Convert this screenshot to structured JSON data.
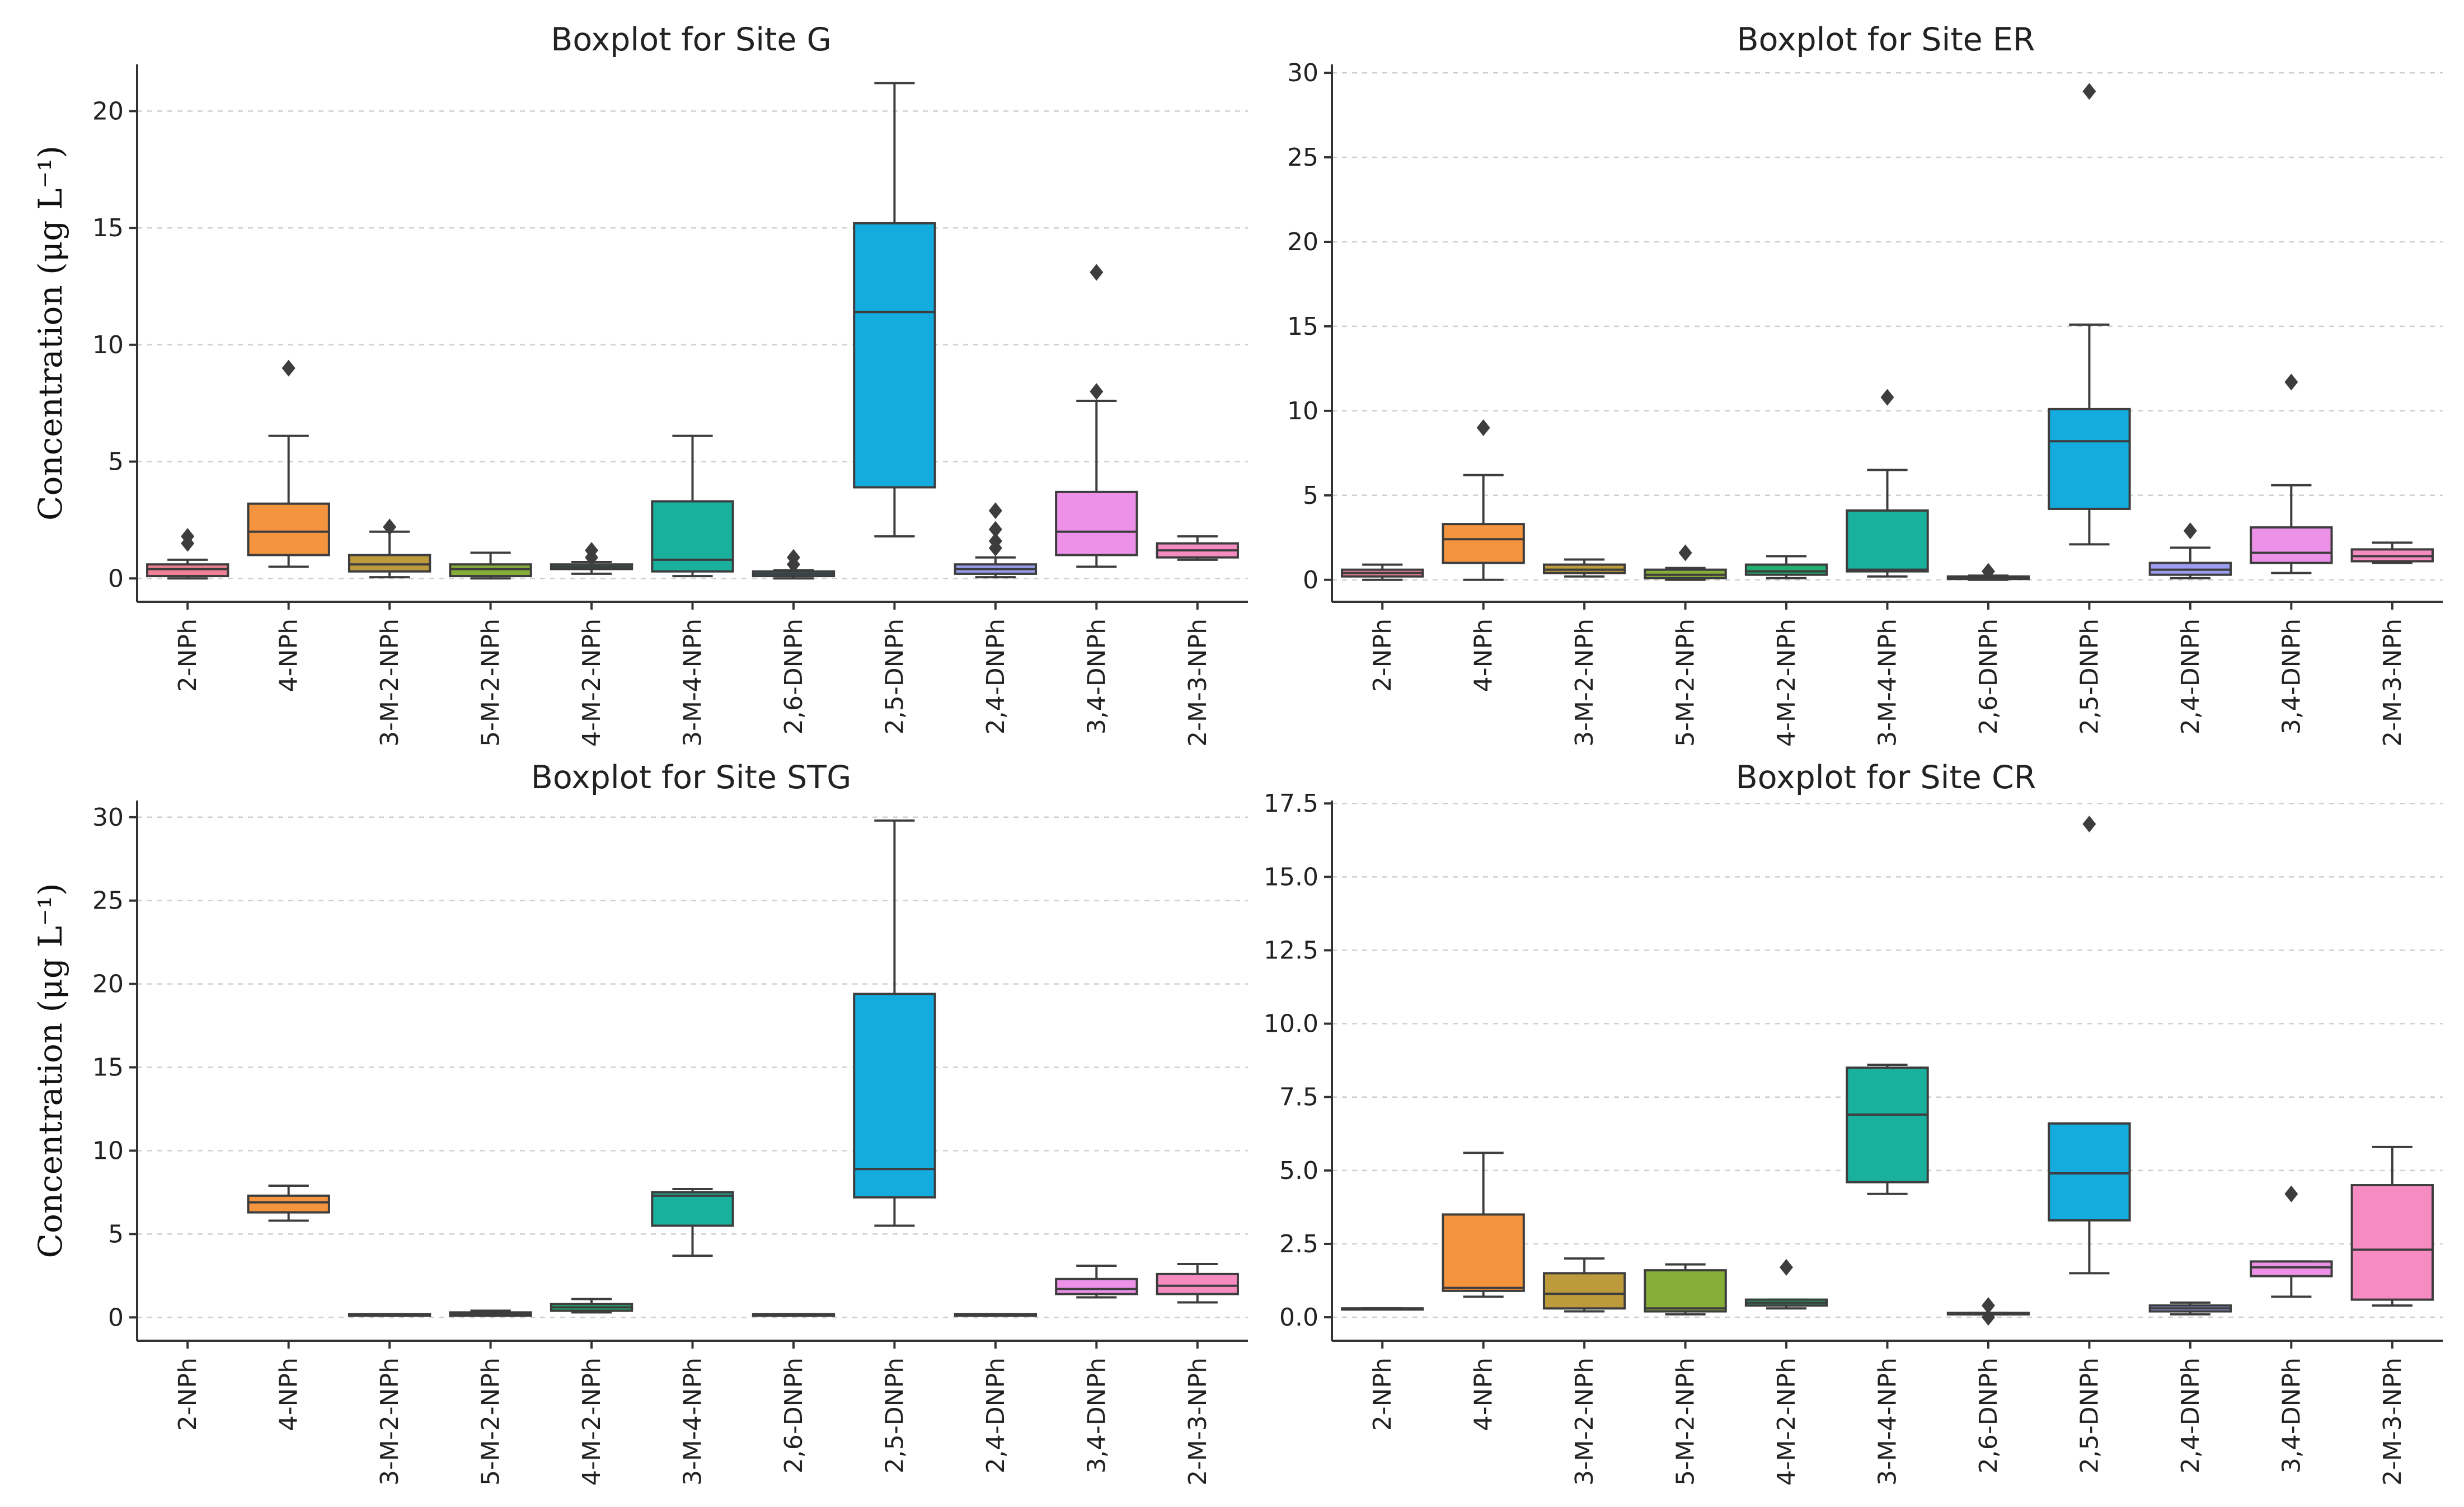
{
  "chart_data": [
    {
      "type": "boxplot",
      "title": "Boxplot for Site G",
      "ylabel": "Concentration (μg L⁻¹)",
      "ylim": [
        -1,
        22
      ],
      "yticks": [
        0,
        5,
        10,
        15,
        20
      ],
      "ytick_labels": [
        "0",
        "5",
        "10",
        "15",
        "20"
      ],
      "categories": [
        "2-NPh",
        "4-NPh",
        "3-M-2-NPh",
        "5-M-2-NPh",
        "4-M-2-NPh",
        "3-M-4-NPh",
        "2,6-DNPh",
        "2,5-DNPh",
        "2,4-DNPh",
        "3,4-DNPh",
        "2-M-3-NPh"
      ],
      "boxes": [
        {
          "whislo": 0.0,
          "q1": 0.1,
          "med": 0.4,
          "q3": 0.6,
          "whishi": 0.8,
          "fliers": [
            1.5,
            1.8
          ]
        },
        {
          "whislo": 0.5,
          "q1": 1.0,
          "med": 2.0,
          "q3": 3.2,
          "whishi": 6.1,
          "fliers": [
            9.0
          ]
        },
        {
          "whislo": 0.05,
          "q1": 0.3,
          "med": 0.6,
          "q3": 1.0,
          "whishi": 2.0,
          "fliers": [
            2.2
          ]
        },
        {
          "whislo": 0.0,
          "q1": 0.1,
          "med": 0.4,
          "q3": 0.6,
          "whishi": 1.1,
          "fliers": []
        },
        {
          "whislo": 0.2,
          "q1": 0.4,
          "med": 0.5,
          "q3": 0.6,
          "whishi": 0.7,
          "fliers": [
            0.9,
            1.2
          ]
        },
        {
          "whislo": 0.1,
          "q1": 0.3,
          "med": 0.8,
          "q3": 3.3,
          "whishi": 6.1,
          "fliers": []
        },
        {
          "whislo": 0.0,
          "q1": 0.1,
          "med": 0.2,
          "q3": 0.3,
          "whishi": 0.35,
          "fliers": [
            0.6,
            0.9
          ]
        },
        {
          "whislo": 1.8,
          "q1": 3.9,
          "med": 11.4,
          "q3": 15.2,
          "whishi": 21.2,
          "fliers": []
        },
        {
          "whislo": 0.05,
          "q1": 0.2,
          "med": 0.4,
          "q3": 0.6,
          "whishi": 0.9,
          "fliers": [
            1.3,
            1.6,
            2.1,
            2.9
          ]
        },
        {
          "whislo": 0.5,
          "q1": 1.0,
          "med": 2.0,
          "q3": 3.7,
          "whishi": 7.6,
          "fliers": [
            8.0,
            13.1
          ]
        },
        {
          "whislo": 0.8,
          "q1": 0.9,
          "med": 1.2,
          "q3": 1.5,
          "whishi": 1.8,
          "fliers": []
        }
      ]
    },
    {
      "type": "boxplot",
      "title": "Boxplot for Site ER",
      "ylabel": "",
      "ylim": [
        -1.3,
        30.5
      ],
      "yticks": [
        0,
        5,
        10,
        15,
        20,
        25,
        30
      ],
      "ytick_labels": [
        "0",
        "5",
        "10",
        "15",
        "20",
        "25",
        "30"
      ],
      "categories": [
        "2-NPh",
        "4-NPh",
        "3-M-2-NPh",
        "5-M-2-NPh",
        "4-M-2-NPh",
        "3-M-4-NPh",
        "2,6-DNPh",
        "2,5-DNPh",
        "2,4-DNPh",
        "3,4-DNPh",
        "2-M-3-NPh"
      ],
      "boxes": [
        {
          "whislo": 0.0,
          "q1": 0.2,
          "med": 0.4,
          "q3": 0.6,
          "whishi": 0.9,
          "fliers": []
        },
        {
          "whislo": 0.0,
          "q1": 1.0,
          "med": 2.4,
          "q3": 3.3,
          "whishi": 6.2,
          "fliers": [
            9.0
          ]
        },
        {
          "whislo": 0.2,
          "q1": 0.4,
          "med": 0.6,
          "q3": 0.9,
          "whishi": 1.2,
          "fliers": []
        },
        {
          "whislo": 0.0,
          "q1": 0.1,
          "med": 0.3,
          "q3": 0.6,
          "whishi": 0.7,
          "fliers": [
            1.6
          ]
        },
        {
          "whislo": 0.1,
          "q1": 0.3,
          "med": 0.5,
          "q3": 0.9,
          "whishi": 1.4,
          "fliers": []
        },
        {
          "whislo": 0.2,
          "q1": 0.5,
          "med": 0.6,
          "q3": 4.1,
          "whishi": 6.5,
          "fliers": [
            10.8
          ]
        },
        {
          "whislo": 0.0,
          "q1": 0.05,
          "med": 0.1,
          "q3": 0.2,
          "whishi": 0.25,
          "fliers": [
            0.5
          ]
        },
        {
          "whislo": 2.1,
          "q1": 4.2,
          "med": 8.2,
          "q3": 10.1,
          "whishi": 15.1,
          "fliers": [
            28.9
          ]
        },
        {
          "whislo": 0.1,
          "q1": 0.3,
          "med": 0.6,
          "q3": 1.0,
          "whishi": 1.9,
          "fliers": [
            2.9
          ]
        },
        {
          "whislo": 0.4,
          "q1": 1.0,
          "med": 1.6,
          "q3": 3.1,
          "whishi": 5.6,
          "fliers": [
            11.7
          ]
        },
        {
          "whislo": 1.0,
          "q1": 1.1,
          "med": 1.4,
          "q3": 1.8,
          "whishi": 2.2,
          "fliers": []
        }
      ]
    },
    {
      "type": "boxplot",
      "title": "Boxplot for Site STG",
      "ylabel": "Concentration (μg L⁻¹)",
      "ylim": [
        -1.4,
        31
      ],
      "yticks": [
        0,
        5,
        10,
        15,
        20,
        25,
        30
      ],
      "ytick_labels": [
        "0",
        "5",
        "10",
        "15",
        "20",
        "25",
        "30"
      ],
      "categories": [
        "2-NPh",
        "4-NPh",
        "3-M-2-NPh",
        "5-M-2-NPh",
        "4-M-2-NPh",
        "3-M-4-NPh",
        "2,6-DNPh",
        "2,5-DNPh",
        "2,4-DNPh",
        "3,4-DNPh",
        "2-M-3-NPh"
      ],
      "boxes": [
        null,
        {
          "whislo": 5.8,
          "q1": 6.3,
          "med": 6.9,
          "q3": 7.3,
          "whishi": 7.9,
          "fliers": []
        },
        {
          "whislo": 0.1,
          "q1": 0.1,
          "med": 0.15,
          "q3": 0.2,
          "whishi": 0.2,
          "fliers": []
        },
        {
          "whislo": 0.1,
          "q1": 0.1,
          "med": 0.2,
          "q3": 0.3,
          "whishi": 0.4,
          "fliers": []
        },
        {
          "whislo": 0.3,
          "q1": 0.4,
          "med": 0.6,
          "q3": 0.8,
          "whishi": 1.1,
          "fliers": []
        },
        {
          "whislo": 3.7,
          "q1": 5.5,
          "med": 7.3,
          "q3": 7.5,
          "whishi": 7.7,
          "fliers": []
        },
        {
          "whislo": 0.1,
          "q1": 0.1,
          "med": 0.15,
          "q3": 0.2,
          "whishi": 0.2,
          "fliers": []
        },
        {
          "whislo": 5.5,
          "q1": 7.2,
          "med": 8.9,
          "q3": 19.4,
          "whishi": 29.8,
          "fliers": []
        },
        {
          "whislo": 0.1,
          "q1": 0.1,
          "med": 0.15,
          "q3": 0.2,
          "whishi": 0.2,
          "fliers": []
        },
        {
          "whislo": 1.2,
          "q1": 1.4,
          "med": 1.7,
          "q3": 2.3,
          "whishi": 3.1,
          "fliers": []
        },
        {
          "whislo": 0.9,
          "q1": 1.4,
          "med": 1.9,
          "q3": 2.6,
          "whishi": 3.2,
          "fliers": []
        }
      ]
    },
    {
      "type": "boxplot",
      "title": "Boxplot for Site CR",
      "ylabel": "",
      "ylim": [
        -0.8,
        17.6
      ],
      "yticks": [
        0,
        2.5,
        5,
        7.5,
        10,
        12.5,
        15,
        17.5
      ],
      "ytick_labels": [
        "0.0",
        "2.5",
        "5.0",
        "7.5",
        "10.0",
        "12.5",
        "15.0",
        "17.5"
      ],
      "categories": [
        "2-NPh",
        "4-NPh",
        "3-M-2-NPh",
        "5-M-2-NPh",
        "4-M-2-NPh",
        "3-M-4-NPh",
        "2,6-DNPh",
        "2,5-DNPh",
        "2,4-DNPh",
        "3,4-DNPh",
        "2-M-3-NPh"
      ],
      "boxes": [
        {
          "whislo": 0.3,
          "q1": 0.3,
          "med": 0.3,
          "q3": 0.3,
          "whishi": 0.3,
          "fliers": []
        },
        {
          "whislo": 0.7,
          "q1": 0.9,
          "med": 1.0,
          "q3": 3.5,
          "whishi": 5.6,
          "fliers": []
        },
        {
          "whislo": 0.2,
          "q1": 0.3,
          "med": 0.8,
          "q3": 1.5,
          "whishi": 2.0,
          "fliers": []
        },
        {
          "whislo": 0.1,
          "q1": 0.2,
          "med": 0.3,
          "q3": 1.6,
          "whishi": 1.8,
          "fliers": []
        },
        {
          "whislo": 0.3,
          "q1": 0.4,
          "med": 0.5,
          "q3": 0.6,
          "whishi": 0.6,
          "fliers": [
            1.7
          ]
        },
        {
          "whislo": 4.2,
          "q1": 4.6,
          "med": 6.9,
          "q3": 8.5,
          "whishi": 8.6,
          "fliers": []
        },
        {
          "whislo": 0.1,
          "q1": 0.1,
          "med": 0.1,
          "q3": 0.15,
          "whishi": 0.15,
          "fliers": [
            0.0,
            0.4
          ]
        },
        {
          "whislo": 1.5,
          "q1": 3.3,
          "med": 4.9,
          "q3": 6.6,
          "whishi": 6.6,
          "fliers": [
            16.8
          ]
        },
        {
          "whislo": 0.1,
          "q1": 0.2,
          "med": 0.3,
          "q3": 0.4,
          "whishi": 0.5,
          "fliers": []
        },
        {
          "whislo": 0.7,
          "q1": 1.4,
          "med": 1.7,
          "q3": 1.9,
          "whishi": 1.9,
          "fliers": [
            4.2
          ]
        },
        {
          "whislo": 0.4,
          "q1": 0.6,
          "med": 2.3,
          "q3": 4.5,
          "whishi": 5.8,
          "fliers": []
        }
      ]
    }
  ],
  "colors": [
    "#f08095",
    "#f4943f",
    "#bd9a3c",
    "#88ae3a",
    "#21ae70",
    "#1ab09e",
    "#22b1c6",
    "#14acde",
    "#9b9ef0",
    "#ed91e8",
    "#f68bc2"
  ]
}
